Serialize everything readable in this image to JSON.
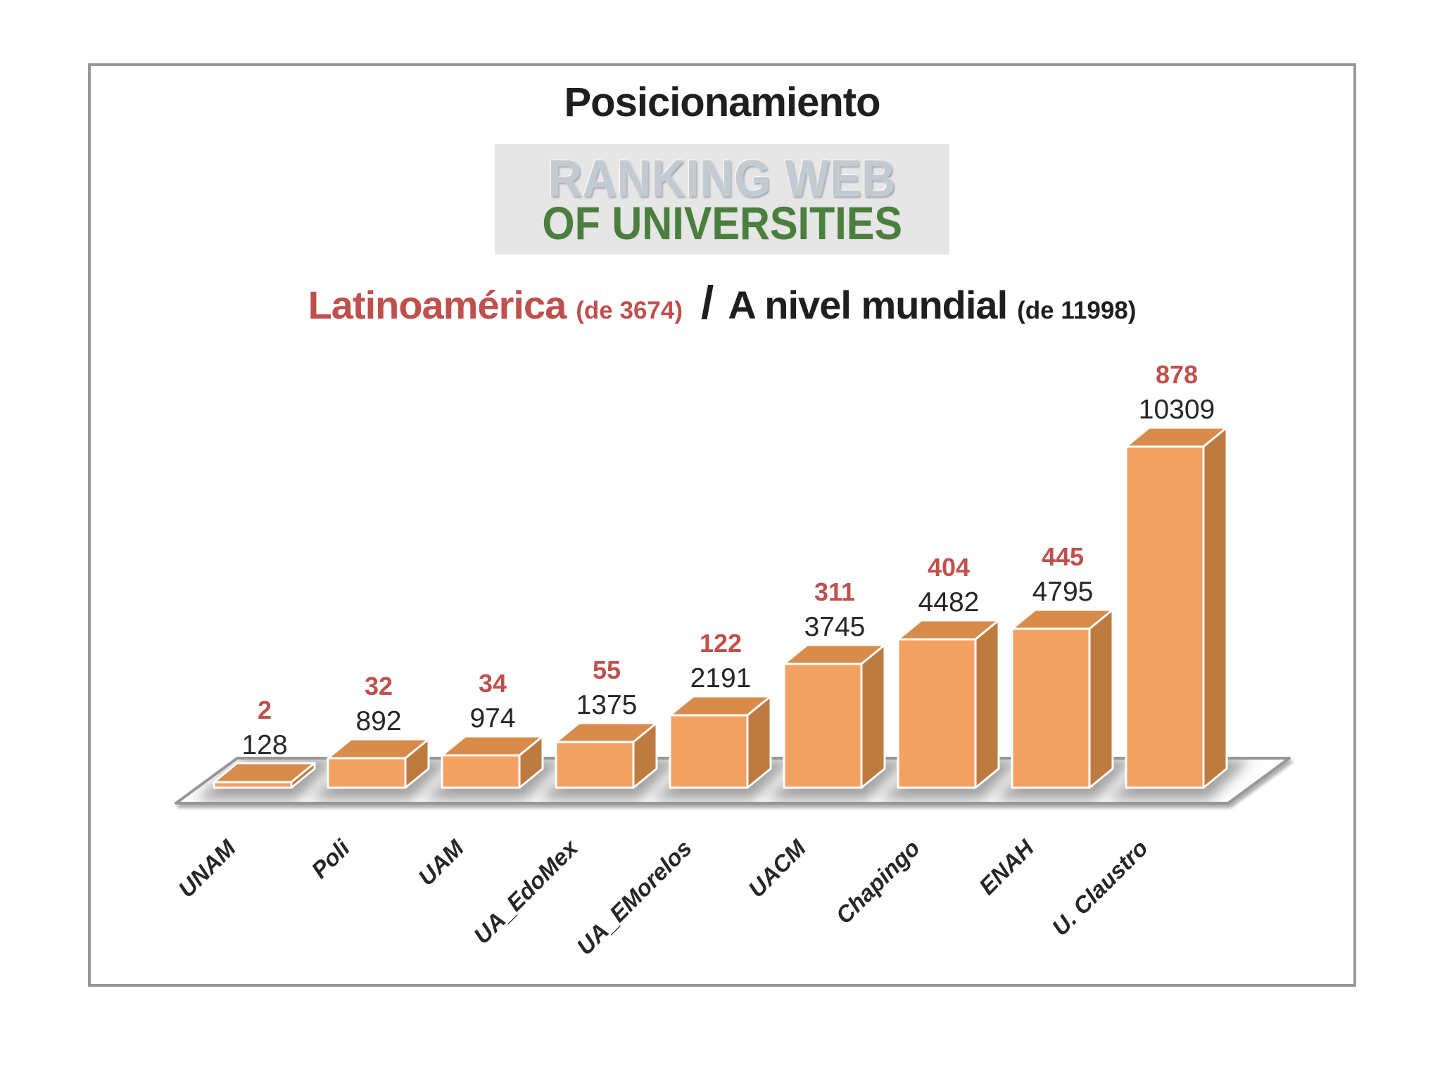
{
  "header": {
    "title": "Posicionamiento",
    "logo": {
      "line1": "RANKING WEB",
      "line2": "OF UNIVERSITIES"
    },
    "subtitle": {
      "latam_label": "Latinoamérica",
      "latam_total": "(de 3674)",
      "separator": "/",
      "world_label": "A nivel mundial",
      "world_total": "(de 11998)"
    }
  },
  "chart_data": {
    "type": "bar",
    "style": "3d-column",
    "categories": [
      "UNAM",
      "Poli",
      "UAM",
      "UA_EdoMex",
      "UA_EMorelos",
      "UACM",
      "Chapingo",
      "ENAH",
      "U. Claustro"
    ],
    "series": [
      {
        "name": "Latinoamérica (de 3674)",
        "role": "red-label-above-bar",
        "color": "#c0504d",
        "values": [
          2,
          32,
          34,
          55,
          122,
          311,
          404,
          445,
          878
        ]
      },
      {
        "name": "A nivel mundial (de 11998)",
        "role": "black-label-and-bar-height",
        "color": "#262626",
        "values": [
          128,
          892,
          974,
          1375,
          2191,
          3745,
          4482,
          4795,
          10309
        ]
      }
    ],
    "bar_colors": {
      "front": "#f4a263",
      "top": "#d88c4b",
      "side": "#be7b3f"
    },
    "floor_stroke": "#979797",
    "legend_position": "none",
    "grid": false,
    "ylim": [
      0,
      10309
    ]
  }
}
